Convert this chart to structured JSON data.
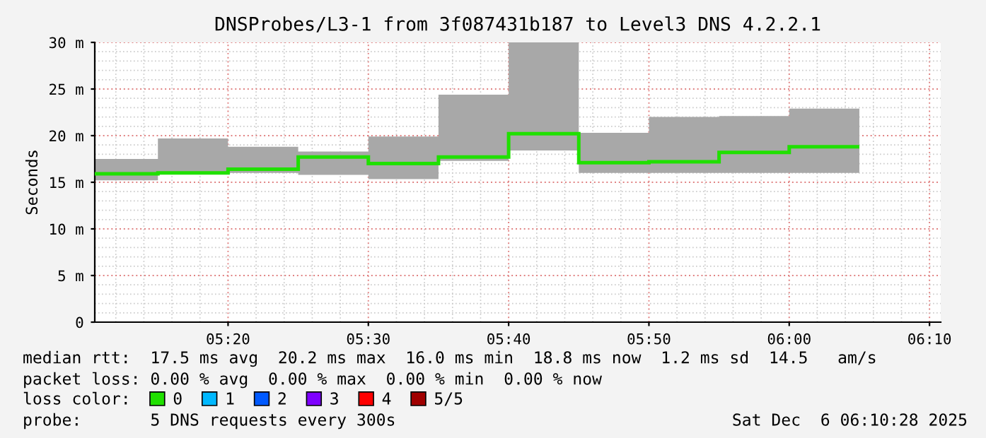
{
  "chart_data": {
    "type": "step",
    "title": "DNSProbes/L3-1 from 3f087431b187 to Level3 DNS 4.2.2.1",
    "ylabel": "Seconds",
    "x": [
      5.25,
      5.333333,
      5.416667,
      5.5,
      5.583333,
      5.666667,
      5.75,
      5.833333,
      5.916667,
      6.0,
      6.083333
    ],
    "series": [
      {
        "name": "0",
        "color": "#20e000",
        "values": [
          15.9,
          16.0,
          16.4,
          17.7,
          17.0,
          17.7,
          20.2,
          17.1,
          17.2,
          18.2,
          18.8
        ],
        "lower": [
          15.2,
          15.9,
          16.0,
          15.8,
          15.35,
          17.3,
          18.4,
          16.0,
          16.0,
          16.0,
          16.0
        ],
        "upper": [
          17.5,
          19.7,
          18.8,
          18.3,
          19.9,
          24.4,
          30.0,
          20.3,
          22.0,
          22.1,
          22.9
        ]
      },
      {
        "name": "1",
        "color": "#00b8ff",
        "values": [
          null,
          null,
          null,
          null,
          null,
          null,
          null,
          null,
          null,
          null,
          null
        ]
      },
      {
        "name": "2",
        "color": "#0059ff",
        "values": [
          null,
          null,
          null,
          null,
          null,
          null,
          null,
          null,
          null,
          null,
          null
        ]
      },
      {
        "name": "3",
        "color": "#7e00ff",
        "values": [
          null,
          null,
          null,
          null,
          null,
          null,
          null,
          null,
          null,
          null,
          null
        ]
      },
      {
        "name": "4",
        "color": "#ff0000",
        "values": [
          null,
          null,
          null,
          null,
          null,
          null,
          null,
          null,
          null,
          null,
          null
        ]
      },
      {
        "name": "5/5",
        "color": "#a00000",
        "values": [
          null,
          null,
          null,
          null,
          null,
          null,
          null,
          null,
          null,
          null,
          null
        ]
      }
    ],
    "xlim": [
      5.175,
      6.18
    ],
    "xticks": [
      {
        "value": 5.333333,
        "label": "05:20"
      },
      {
        "value": 5.5,
        "label": "05:30"
      },
      {
        "value": 5.666667,
        "label": "05:40"
      },
      {
        "value": 5.833333,
        "label": "05:50"
      },
      {
        "value": 6.0,
        "label": "06:00"
      },
      {
        "value": 6.166667,
        "label": "06:10"
      }
    ],
    "ylim": [
      0,
      30
    ],
    "yticks": [
      0,
      {
        "value": 5,
        "label": "5 m"
      },
      {
        "value": 10,
        "label": "10 m"
      },
      {
        "value": 15,
        "label": "15 m"
      },
      {
        "value": 20,
        "label": "20 m"
      },
      {
        "value": 25,
        "label": "25 m"
      },
      {
        "value": 30,
        "label": "30 m"
      }
    ],
    "grid": true,
    "legend": "bottom",
    "legend_title": "loss color:",
    "annotations": [
      "median rtt:  17.5 ms avg  20.2 ms max  16.0 ms min  18.8 ms now  1.2 ms sd  14.5   am/s",
      "packet loss: 0.00 % avg  0.00 % max  0.00 % min  0.00 % now",
      "probe:       5 DNS requests every 300s",
      "Sat Dec  6 06:10:28 2025"
    ]
  }
}
